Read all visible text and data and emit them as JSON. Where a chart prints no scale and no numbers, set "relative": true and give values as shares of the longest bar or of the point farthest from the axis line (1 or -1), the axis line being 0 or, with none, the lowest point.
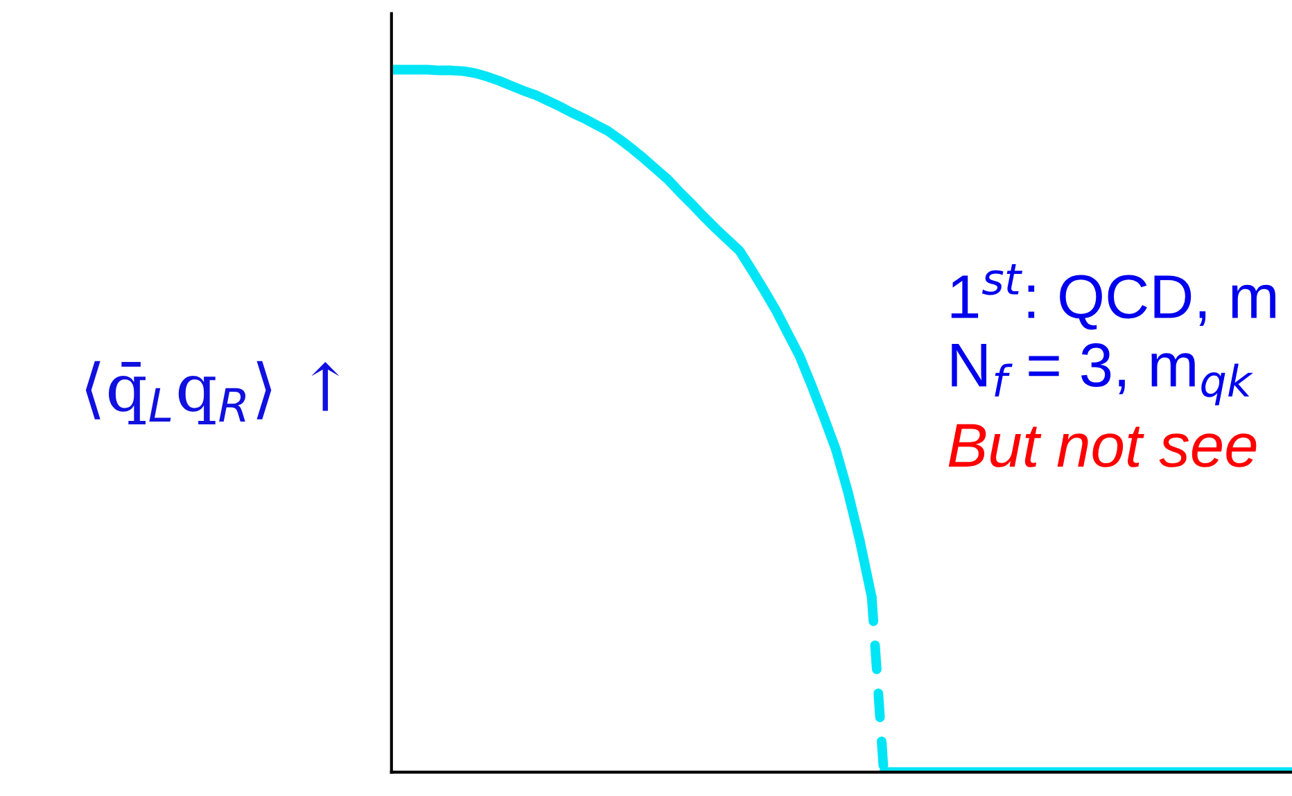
{
  "chart_data": {
    "type": "line",
    "relative": true,
    "ylabel": "⟨q̄$_{L}$q$_{R}$⟩ ↑",
    "annotations": [
      "1$^{st}$: QCD, m",
      "N$_{f}$ = 3, m$_{qk}$",
      "But not see"
    ],
    "legend": false,
    "categories": [
      null,
      null,
      null,
      null,
      null,
      null,
      null,
      null,
      null,
      null,
      null,
      null,
      null,
      null,
      null,
      null,
      null,
      null,
      null,
      null,
      null,
      null,
      null,
      null,
      null,
      null,
      null,
      null,
      null,
      null,
      null,
      null,
      null,
      null,
      null,
      null,
      null,
      null,
      null,
      null,
      null,
      null,
      null,
      null,
      null,
      null,
      null,
      null,
      null,
      null,
      null,
      null,
      null,
      null,
      null,
      null,
      null,
      null,
      null,
      null,
      null,
      null,
      null,
      null,
      null,
      null,
      null,
      null,
      null,
      null,
      null,
      null,
      null,
      null,
      null,
      null
    ],
    "series": [
      {
        "color": "#00e5f5",
        "line_style": "solid",
        "values": [
          1.0,
          1.0,
          1.0,
          1.0,
          0.999,
          0.999,
          0.998,
          0.995,
          0.99,
          0.984,
          0.977,
          0.97,
          0.964,
          0.956,
          0.948,
          0.939,
          0.931,
          0.922,
          0.913,
          0.901,
          0.888,
          0.874,
          0.859,
          0.844,
          0.826,
          0.809,
          0.791,
          0.774,
          0.758,
          0.742,
          0.715,
          0.687,
          0.658,
          0.625,
          0.592,
          0.55,
          0.506,
          0.46,
          0.4,
          0.33,
          0.249,
          null,
          null,
          null,
          null,
          null,
          null,
          null,
          null,
          null,
          null,
          null,
          null,
          null,
          null,
          null,
          null,
          null,
          null,
          null,
          null,
          null,
          null,
          null,
          null,
          null,
          null,
          null,
          null,
          null,
          null,
          null,
          null,
          null,
          null,
          null
        ]
      },
      {
        "color": "#00e5f5",
        "line_style": "dashed",
        "values": [
          null,
          null,
          null,
          null,
          null,
          null,
          null,
          null,
          null,
          null,
          null,
          null,
          null,
          null,
          null,
          null,
          null,
          null,
          null,
          null,
          null,
          null,
          null,
          null,
          null,
          null,
          null,
          null,
          null,
          null,
          null,
          null,
          null,
          null,
          null,
          null,
          null,
          null,
          null,
          null,
          0.249,
          0,
          null,
          null,
          null,
          null,
          null,
          null,
          null,
          null,
          null,
          null,
          null,
          null,
          null,
          null,
          null,
          null,
          null,
          null,
          null,
          null,
          null,
          null,
          null,
          null,
          null,
          null,
          null,
          null,
          null,
          null,
          null,
          null,
          null,
          null
        ]
      },
      {
        "color": "#00e5f5",
        "line_style": "solid",
        "values": [
          null,
          null,
          null,
          null,
          null,
          null,
          null,
          null,
          null,
          null,
          null,
          null,
          null,
          null,
          null,
          null,
          null,
          null,
          null,
          null,
          null,
          null,
          null,
          null,
          null,
          null,
          null,
          null,
          null,
          null,
          null,
          null,
          null,
          null,
          null,
          null,
          null,
          null,
          null,
          null,
          null,
          0,
          0,
          0,
          0,
          0,
          0,
          0,
          0,
          0,
          0,
          0,
          0,
          0,
          0,
          0,
          0,
          0,
          0,
          0,
          0,
          0,
          0,
          0,
          0,
          0,
          0,
          0,
          0,
          0,
          0,
          0,
          0,
          0,
          0,
          0
        ]
      }
    ]
  }
}
